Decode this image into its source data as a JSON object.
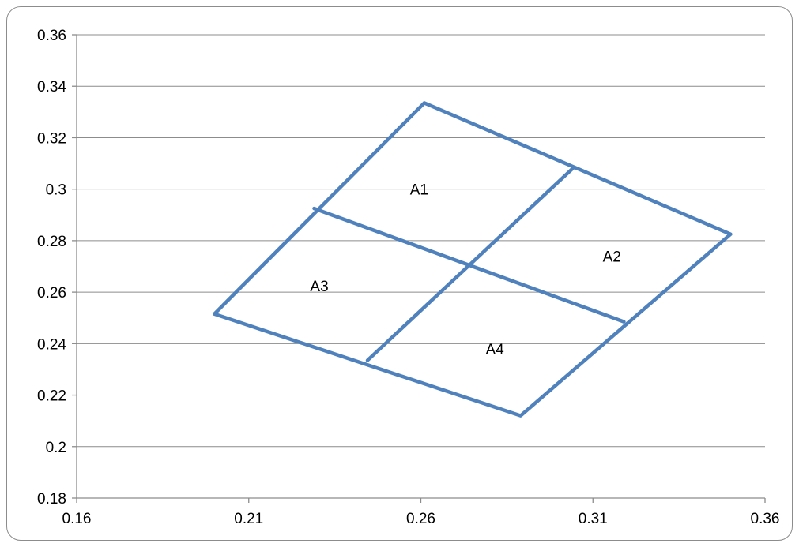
{
  "chart_data": {
    "type": "line",
    "title": "",
    "xlabel": "",
    "ylabel": "",
    "xlim": [
      0.16,
      0.36
    ],
    "ylim": [
      0.18,
      0.36
    ],
    "x_ticks": [
      0.16,
      0.21,
      0.26,
      0.31,
      0.36
    ],
    "x_tick_labels": [
      "0.16",
      "0.21",
      "0.26",
      "0.31",
      "0.36"
    ],
    "y_ticks": [
      0.18,
      0.2,
      0.22,
      0.24,
      0.26,
      0.28,
      0.3,
      0.32,
      0.34,
      0.36
    ],
    "y_tick_labels": [
      "0.18",
      "0.2",
      "0.22",
      "0.24",
      "0.26",
      "0.28",
      "0.3",
      "0.32",
      "0.34",
      "0.36"
    ],
    "grid": "horizontal",
    "legend": "none",
    "line_color": "#4f81bd",
    "series": [
      {
        "x": [
          0.2,
          0.261,
          0.35,
          0.289,
          0.2
        ],
        "y": [
          0.2515,
          0.3335,
          0.2825,
          0.212,
          0.2515
        ]
      },
      {
        "x": [
          0.229,
          0.319
        ],
        "y": [
          0.2925,
          0.2485
        ]
      },
      {
        "x": [
          0.3045,
          0.2445
        ],
        "y": [
          0.3085,
          0.2335
        ]
      }
    ],
    "annotations": [
      {
        "text": "A1",
        "x": 0.2595,
        "y": 0.3
      },
      {
        "text": "A2",
        "x": 0.3155,
        "y": 0.274
      },
      {
        "text": "A3",
        "x": 0.2305,
        "y": 0.2625
      },
      {
        "text": "A4",
        "x": 0.2815,
        "y": 0.238
      }
    ]
  }
}
